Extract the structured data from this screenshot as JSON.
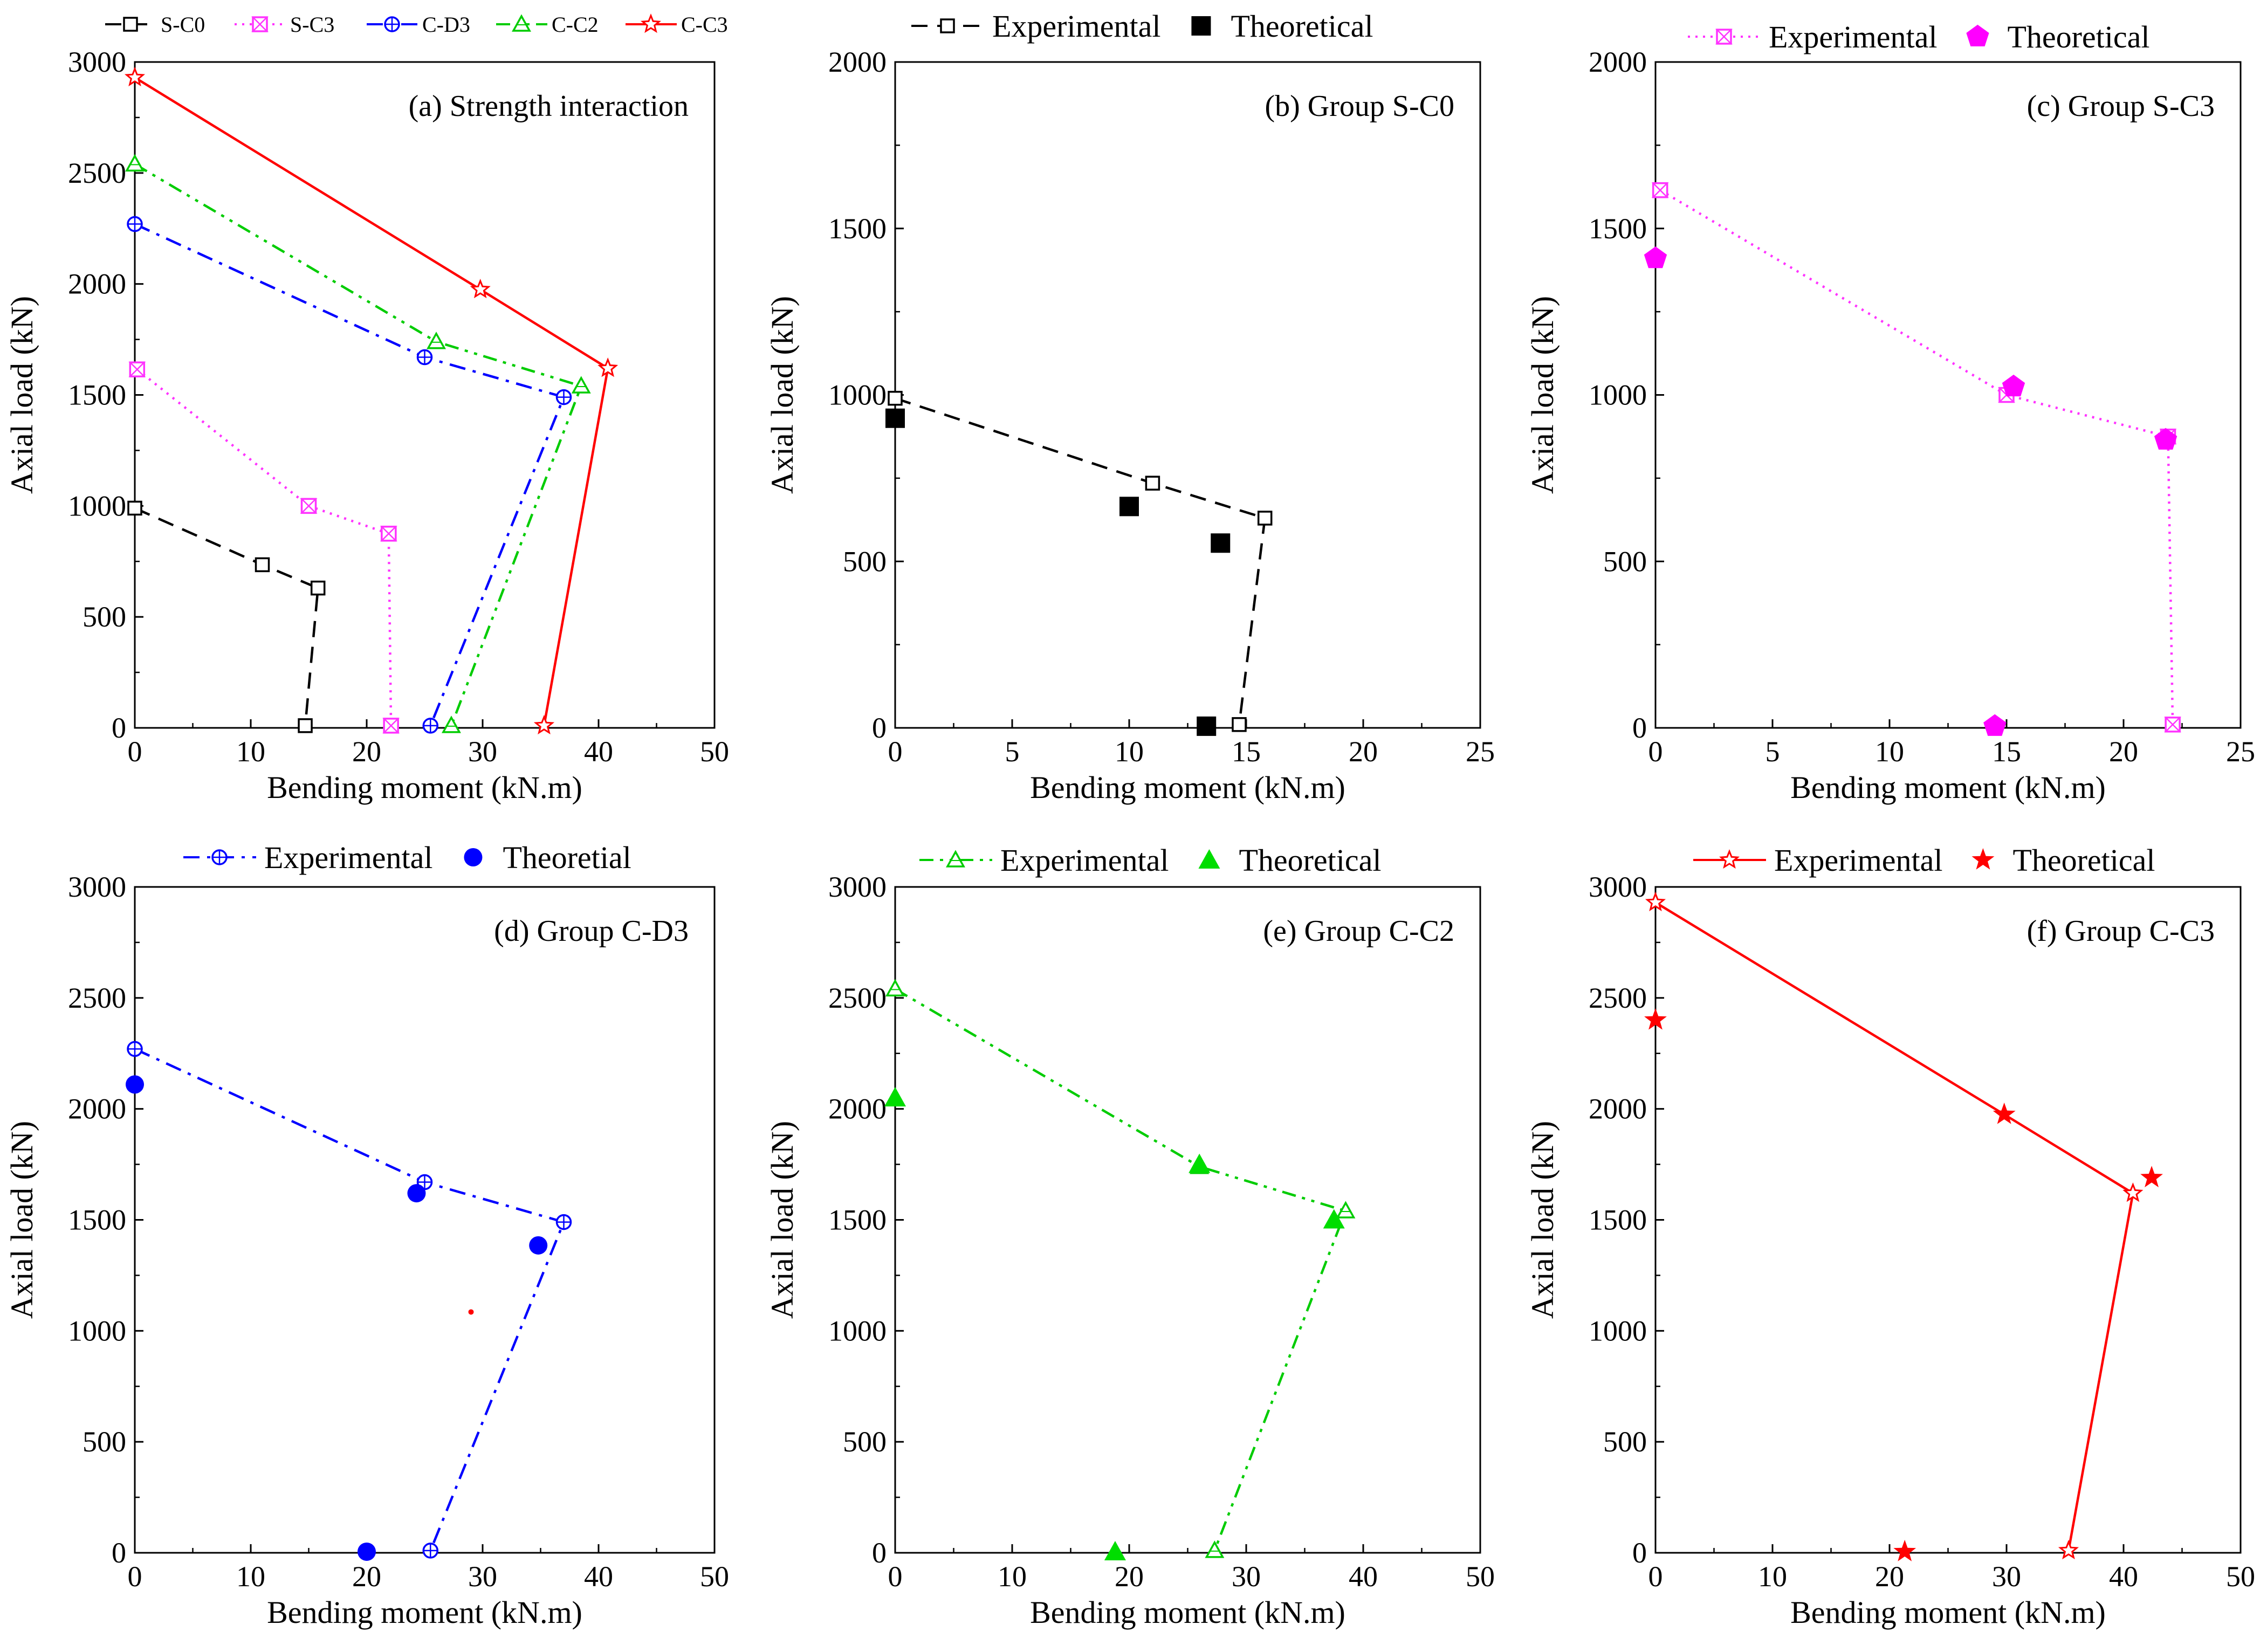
{
  "chart_data": [
    {
      "id": "a",
      "type": "line",
      "title": "(a) Strength interaction",
      "xlabel": "Bending moment (kN.m)",
      "ylabel": "Axial load (kN)",
      "xlim": [
        0,
        50
      ],
      "ylim": [
        0,
        3000
      ],
      "xticks": [
        "0",
        "10",
        "20",
        "30",
        "40",
        "50"
      ],
      "yticks": [
        "0",
        "500",
        "1000",
        "1500",
        "2000",
        "2500",
        "3000"
      ],
      "legend": {
        "labels": [
          "S-C0",
          "S-C3",
          "C-D3",
          "C-C2",
          "C-C3"
        ]
      },
      "series": [
        {
          "name": "S-C0",
          "style": "expt",
          "color": "#000000",
          "dash": "dash",
          "marker": "square-open",
          "points": [
            [
              0,
              990
            ],
            [
              11,
              735
            ],
            [
              15.8,
              630
            ],
            [
              14.7,
              10
            ]
          ]
        },
        {
          "name": "S-C3",
          "style": "expt",
          "color": "#ff33ff",
          "dash": "dot",
          "marker": "hourglass-open",
          "points": [
            [
              0.2,
              1615
            ],
            [
              15,
              1000
            ],
            [
              21.9,
              875
            ],
            [
              22.1,
              10
            ]
          ]
        },
        {
          "name": "C-D3",
          "style": "expt",
          "color": "#0000ff",
          "dash": "dashdot",
          "marker": "circleplus-open",
          "points": [
            [
              0,
              2270
            ],
            [
              25,
              1670
            ],
            [
              37,
              1490
            ],
            [
              25.5,
              10
            ]
          ]
        },
        {
          "name": "C-C2",
          "style": "expt",
          "color": "#00cc00",
          "dash": "dashdotdot",
          "marker": "triangle-open",
          "points": [
            [
              0,
              2540
            ],
            [
              26,
              1740
            ],
            [
              38.5,
              1540
            ],
            [
              27.3,
              10
            ]
          ]
        },
        {
          "name": "C-C3",
          "style": "expt",
          "color": "#ff0000",
          "dash": "solid",
          "marker": "star-open",
          "points": [
            [
              0,
              2930
            ],
            [
              29.8,
              1975
            ],
            [
              40.8,
              1620
            ],
            [
              35.3,
              10
            ]
          ]
        }
      ]
    },
    {
      "id": "b",
      "type": "line",
      "title": "(b) Group S-C0",
      "xlabel": "Bending moment (kN.m)",
      "ylabel": "Axial load (kN)",
      "xlim": [
        0,
        25
      ],
      "ylim": [
        0,
        2000
      ],
      "xticks": [
        "0",
        "5",
        "10",
        "15",
        "20",
        "25"
      ],
      "yticks": [
        "0",
        "500",
        "1000",
        "1500",
        "2000"
      ],
      "legend": {
        "labels": [
          "Experimental",
          "Theoretical"
        ]
      },
      "series": [
        {
          "name": "Experimental",
          "style": "expt",
          "color": "#000000",
          "dash": "dash",
          "marker": "square-open",
          "points": [
            [
              0,
              990
            ],
            [
              11,
              735
            ],
            [
              15.8,
              630
            ],
            [
              14.7,
              10
            ]
          ]
        },
        {
          "name": "Theoretical",
          "style": "theo",
          "color": "#000000",
          "marker": "square-filled",
          "points": [
            [
              0,
              930
            ],
            [
              10,
              665
            ],
            [
              13.9,
              555
            ],
            [
              13.3,
              5
            ]
          ]
        }
      ]
    },
    {
      "id": "c",
      "type": "line",
      "title": "(c) Group S-C3",
      "xlabel": "Bending moment (kN.m)",
      "ylabel": "Axial load (kN)",
      "xlim": [
        0,
        25
      ],
      "ylim": [
        0,
        2000
      ],
      "xticks": [
        "0",
        "5",
        "10",
        "15",
        "20",
        "25"
      ],
      "yticks": [
        "0",
        "500",
        "1000",
        "1500",
        "2000"
      ],
      "legend": {
        "labels": [
          "Experimental",
          "Theoretical"
        ]
      },
      "series": [
        {
          "name": "Experimental",
          "style": "expt",
          "color": "#ff33ff",
          "dash": "dot",
          "marker": "hourglass-open",
          "points": [
            [
              0.2,
              1615
            ],
            [
              15,
              1000
            ],
            [
              21.9,
              875
            ],
            [
              22.1,
              10
            ]
          ]
        },
        {
          "name": "Theoretical",
          "style": "theo",
          "color": "#ff00ff",
          "marker": "pentagon-filled",
          "points": [
            [
              0,
              1410
            ],
            [
              15.3,
              1025
            ],
            [
              21.8,
              865
            ],
            [
              14.5,
              5
            ]
          ]
        }
      ]
    },
    {
      "id": "d",
      "type": "line",
      "title": "(d) Group C-D3",
      "xlabel": "Bending moment (kN.m)",
      "ylabel": "Axial load (kN)",
      "xlim": [
        0,
        50
      ],
      "ylim": [
        0,
        3000
      ],
      "xticks": [
        "0",
        "10",
        "20",
        "30",
        "40",
        "50"
      ],
      "yticks": [
        "0",
        "500",
        "1000",
        "1500",
        "2000",
        "2500",
        "3000"
      ],
      "legend": {
        "labels": [
          "Experimental",
          "Theoretial"
        ]
      },
      "series": [
        {
          "name": "Experimental",
          "style": "expt",
          "color": "#0000ff",
          "dash": "dashdot",
          "marker": "circleplus-open",
          "points": [
            [
              0,
              2270
            ],
            [
              25,
              1670
            ],
            [
              37,
              1490
            ],
            [
              25.5,
              10
            ]
          ]
        },
        {
          "name": "Theoretial",
          "style": "theo",
          "color": "#0000ff",
          "marker": "circle-filled",
          "points": [
            [
              0,
              2110
            ],
            [
              24.3,
              1620
            ],
            [
              34.8,
              1385
            ],
            [
              20,
              5
            ]
          ]
        },
        {
          "name": "stray",
          "style": "theo",
          "color": "#ff0000",
          "marker": "dot-small",
          "legend": false,
          "points": [
            [
              29,
              1085
            ]
          ]
        }
      ]
    },
    {
      "id": "e",
      "type": "line",
      "title": "(e) Group C-C2",
      "xlabel": "Bending moment (kN.m)",
      "ylabel": "Axial load (kN)",
      "xlim": [
        0,
        50
      ],
      "ylim": [
        0,
        3000
      ],
      "xticks": [
        "0",
        "10",
        "20",
        "30",
        "40",
        "50"
      ],
      "yticks": [
        "0",
        "500",
        "1000",
        "1500",
        "2000",
        "2500",
        "3000"
      ],
      "legend": {
        "labels": [
          "Experimental",
          "Theoretical"
        ]
      },
      "series": [
        {
          "name": "Experimental",
          "style": "expt",
          "color": "#00cc00",
          "dash": "dashdotdot",
          "marker": "triangle-open",
          "points": [
            [
              0,
              2540
            ],
            [
              26,
              1740
            ],
            [
              38.5,
              1540
            ],
            [
              27.3,
              10
            ]
          ]
        },
        {
          "name": "Theoretical",
          "style": "theo",
          "color": "#00dd00",
          "marker": "triangle-filled",
          "points": [
            [
              0,
              2050
            ],
            [
              26,
              1750
            ],
            [
              37.5,
              1500
            ],
            [
              18.8,
              5
            ]
          ]
        }
      ]
    },
    {
      "id": "f",
      "type": "line",
      "title": "(f) Group C-C3",
      "xlabel": "Bending moment (kN.m)",
      "ylabel": "Axial load (kN)",
      "xlim": [
        0,
        50
      ],
      "ylim": [
        0,
        3000
      ],
      "xticks": [
        "0",
        "10",
        "20",
        "30",
        "40",
        "50"
      ],
      "yticks": [
        "0",
        "500",
        "1000",
        "1500",
        "2000",
        "2500",
        "3000"
      ],
      "legend": {
        "labels": [
          "Experimental",
          "Theoretical"
        ]
      },
      "series": [
        {
          "name": "Experimental",
          "style": "expt",
          "color": "#ff0000",
          "dash": "solid",
          "marker": "star-open",
          "points": [
            [
              0,
              2930
            ],
            [
              29.8,
              1975
            ],
            [
              40.8,
              1620
            ],
            [
              35.3,
              10
            ]
          ]
        },
        {
          "name": "Theoretical",
          "style": "theo",
          "color": "#ff0000",
          "marker": "star-filled",
          "points": [
            [
              0,
              2400
            ],
            [
              29.8,
              1975
            ],
            [
              42.4,
              1690
            ],
            [
              21.3,
              5
            ]
          ]
        }
      ]
    }
  ]
}
